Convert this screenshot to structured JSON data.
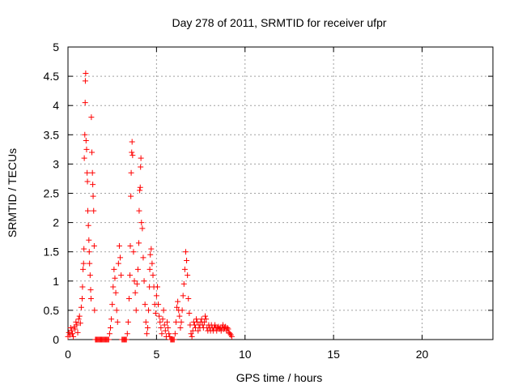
{
  "chart_data": {
    "type": "scatter",
    "title": "Day 278 of 2011, SRMTID for receiver ufpr",
    "xlabel": "GPS time / hours",
    "ylabel": "SRMTID / TECUs",
    "xlim": [
      0,
      24
    ],
    "ylim": [
      0,
      5
    ],
    "xticks": [
      0,
      5,
      10,
      15,
      20
    ],
    "yticks": [
      0,
      0.5,
      1,
      1.5,
      2,
      2.5,
      3,
      3.5,
      4,
      4.5,
      5
    ],
    "xtick_labels": [
      "0",
      "5",
      "10",
      "15",
      "20"
    ],
    "ytick_labels": [
      "0",
      "0.5",
      "1",
      "1.5",
      "2",
      "2.5",
      "3",
      "3.5",
      "4",
      "4.5",
      "5"
    ],
    "grid": true,
    "marker": "+",
    "color": "#ff0000",
    "series": [
      {
        "name": "SRMTID",
        "points": [
          [
            0.0,
            0.05
          ],
          [
            0.05,
            0.12
          ],
          [
            0.1,
            0.08
          ],
          [
            0.15,
            0.2
          ],
          [
            0.2,
            0.15
          ],
          [
            0.25,
            0.1
          ],
          [
            0.3,
            0.05
          ],
          [
            0.35,
            0.22
          ],
          [
            0.4,
            0.18
          ],
          [
            0.45,
            0.3
          ],
          [
            0.5,
            0.25
          ],
          [
            0.55,
            0.12
          ],
          [
            0.6,
            0.35
          ],
          [
            0.65,
            0.4
          ],
          [
            0.7,
            0.28
          ],
          [
            0.75,
            0.55
          ],
          [
            0.8,
            0.7
          ],
          [
            0.82,
            0.9
          ],
          [
            0.85,
            1.2
          ],
          [
            0.88,
            1.3
          ],
          [
            0.9,
            1.55
          ],
          [
            0.92,
            3.1
          ],
          [
            0.95,
            3.5
          ],
          [
            0.97,
            4.05
          ],
          [
            0.98,
            4.42
          ],
          [
            1.0,
            4.55
          ],
          [
            1.02,
            3.4
          ],
          [
            1.05,
            3.25
          ],
          [
            1.08,
            2.85
          ],
          [
            1.1,
            2.7
          ],
          [
            1.12,
            2.2
          ],
          [
            1.15,
            1.95
          ],
          [
            1.18,
            1.7
          ],
          [
            1.2,
            1.5
          ],
          [
            1.22,
            1.3
          ],
          [
            1.25,
            1.1
          ],
          [
            1.28,
            0.85
          ],
          [
            1.3,
            0.7
          ],
          [
            1.32,
            3.8
          ],
          [
            1.35,
            3.2
          ],
          [
            1.38,
            2.85
          ],
          [
            1.4,
            2.65
          ],
          [
            1.42,
            2.45
          ],
          [
            1.45,
            2.2
          ],
          [
            1.48,
            1.6
          ],
          [
            1.5,
            0.5
          ],
          [
            1.55,
            0.0
          ],
          [
            1.6,
            0.0
          ],
          [
            1.65,
            0.0
          ],
          [
            1.7,
            0.0
          ],
          [
            1.75,
            0.0
          ],
          [
            1.8,
            0.0
          ],
          [
            1.85,
            0.0
          ],
          [
            1.9,
            0.0
          ],
          [
            1.95,
            0.0
          ],
          [
            2.0,
            0.0
          ],
          [
            2.05,
            0.0
          ],
          [
            2.1,
            0.0
          ],
          [
            2.15,
            0.0
          ],
          [
            2.2,
            0.0
          ],
          [
            2.25,
            0.0
          ],
          [
            2.3,
            0.0
          ],
          [
            2.35,
            0.1
          ],
          [
            2.4,
            0.2
          ],
          [
            2.45,
            0.35
          ],
          [
            2.5,
            0.6
          ],
          [
            2.55,
            0.9
          ],
          [
            2.6,
            1.2
          ],
          [
            2.65,
            1.05
          ],
          [
            2.7,
            0.8
          ],
          [
            2.75,
            0.5
          ],
          [
            2.8,
            0.3
          ],
          [
            2.85,
            1.3
          ],
          [
            2.9,
            1.6
          ],
          [
            2.95,
            1.4
          ],
          [
            3.0,
            1.1
          ],
          [
            3.05,
            0.0
          ],
          [
            3.1,
            0.0
          ],
          [
            3.15,
            0.0
          ],
          [
            3.2,
            0.0
          ],
          [
            3.25,
            0.0
          ],
          [
            3.3,
            0.0
          ],
          [
            3.35,
            0.1
          ],
          [
            3.4,
            0.3
          ],
          [
            3.45,
            0.7
          ],
          [
            3.5,
            1.1
          ],
          [
            3.52,
            1.6
          ],
          [
            3.55,
            2.45
          ],
          [
            3.57,
            2.85
          ],
          [
            3.6,
            3.2
          ],
          [
            3.62,
            3.38
          ],
          [
            3.65,
            3.15
          ],
          [
            3.7,
            1.5
          ],
          [
            3.75,
            1.0
          ],
          [
            3.8,
            0.8
          ],
          [
            3.85,
            0.5
          ],
          [
            3.9,
            0.95
          ],
          [
            3.95,
            1.2
          ],
          [
            4.0,
            1.65
          ],
          [
            4.02,
            2.2
          ],
          [
            4.05,
            2.55
          ],
          [
            4.08,
            2.6
          ],
          [
            4.1,
            2.95
          ],
          [
            4.12,
            3.1
          ],
          [
            4.15,
            2.0
          ],
          [
            4.2,
            1.9
          ],
          [
            4.25,
            1.4
          ],
          [
            4.3,
            1.0
          ],
          [
            4.35,
            0.6
          ],
          [
            4.4,
            0.3
          ],
          [
            4.45,
            0.1
          ],
          [
            4.5,
            0.2
          ],
          [
            4.55,
            0.5
          ],
          [
            4.6,
            0.9
          ],
          [
            4.62,
            1.2
          ],
          [
            4.65,
            1.45
          ],
          [
            4.7,
            1.55
          ],
          [
            4.75,
            1.3
          ],
          [
            4.8,
            1.1
          ],
          [
            4.85,
            0.9
          ],
          [
            4.9,
            0.6
          ],
          [
            4.95,
            0.45
          ],
          [
            5.0,
            0.75
          ],
          [
            5.05,
            0.9
          ],
          [
            5.1,
            0.6
          ],
          [
            5.15,
            0.4
          ],
          [
            5.2,
            0.3
          ],
          [
            5.25,
            0.2
          ],
          [
            5.3,
            0.1
          ],
          [
            5.35,
            0.35
          ],
          [
            5.4,
            0.5
          ],
          [
            5.45,
            0.25
          ],
          [
            5.5,
            0.15
          ],
          [
            5.55,
            0.05
          ],
          [
            5.6,
            0.3
          ],
          [
            5.65,
            0.2
          ],
          [
            5.7,
            0.1
          ],
          [
            5.75,
            0.05
          ],
          [
            5.8,
            0.0
          ],
          [
            5.85,
            0.0
          ],
          [
            5.9,
            0.0
          ],
          [
            5.95,
            0.0
          ],
          [
            6.0,
            0.0
          ],
          [
            6.05,
            0.1
          ],
          [
            6.1,
            0.3
          ],
          [
            6.15,
            0.55
          ],
          [
            6.2,
            0.65
          ],
          [
            6.25,
            0.5
          ],
          [
            6.3,
            0.4
          ],
          [
            6.35,
            0.2
          ],
          [
            6.4,
            0.3
          ],
          [
            6.45,
            0.5
          ],
          [
            6.5,
            0.75
          ],
          [
            6.55,
            0.95
          ],
          [
            6.6,
            1.2
          ],
          [
            6.65,
            1.5
          ],
          [
            6.7,
            1.35
          ],
          [
            6.75,
            1.1
          ],
          [
            6.8,
            0.7
          ],
          [
            6.85,
            0.45
          ],
          [
            6.9,
            0.25
          ],
          [
            6.95,
            0.1
          ],
          [
            7.0,
            0.05
          ],
          [
            7.05,
            0.15
          ],
          [
            7.1,
            0.3
          ],
          [
            7.15,
            0.25
          ],
          [
            7.2,
            0.2
          ],
          [
            7.25,
            0.35
          ],
          [
            7.3,
            0.3
          ],
          [
            7.35,
            0.15
          ],
          [
            7.4,
            0.25
          ],
          [
            7.45,
            0.2
          ],
          [
            7.5,
            0.3
          ],
          [
            7.55,
            0.35
          ],
          [
            7.6,
            0.25
          ],
          [
            7.65,
            0.2
          ],
          [
            7.7,
            0.3
          ],
          [
            7.75,
            0.4
          ],
          [
            7.8,
            0.35
          ],
          [
            7.85,
            0.2
          ],
          [
            7.9,
            0.15
          ],
          [
            7.95,
            0.25
          ],
          [
            8.0,
            0.2
          ],
          [
            8.05,
            0.15
          ],
          [
            8.1,
            0.25
          ],
          [
            8.15,
            0.2
          ],
          [
            8.2,
            0.15
          ],
          [
            8.25,
            0.2
          ],
          [
            8.3,
            0.25
          ],
          [
            8.35,
            0.2
          ],
          [
            8.4,
            0.15
          ],
          [
            8.45,
            0.2
          ],
          [
            8.5,
            0.22
          ],
          [
            8.55,
            0.18
          ],
          [
            8.6,
            0.2
          ],
          [
            8.65,
            0.15
          ],
          [
            8.7,
            0.2
          ],
          [
            8.75,
            0.25
          ],
          [
            8.8,
            0.18
          ],
          [
            8.85,
            0.2
          ],
          [
            8.9,
            0.22
          ],
          [
            8.95,
            0.15
          ],
          [
            9.0,
            0.2
          ],
          [
            9.05,
            0.18
          ],
          [
            9.1,
            0.12
          ],
          [
            9.15,
            0.1
          ],
          [
            9.2,
            0.08
          ],
          [
            9.25,
            0.05
          ]
        ]
      }
    ]
  }
}
